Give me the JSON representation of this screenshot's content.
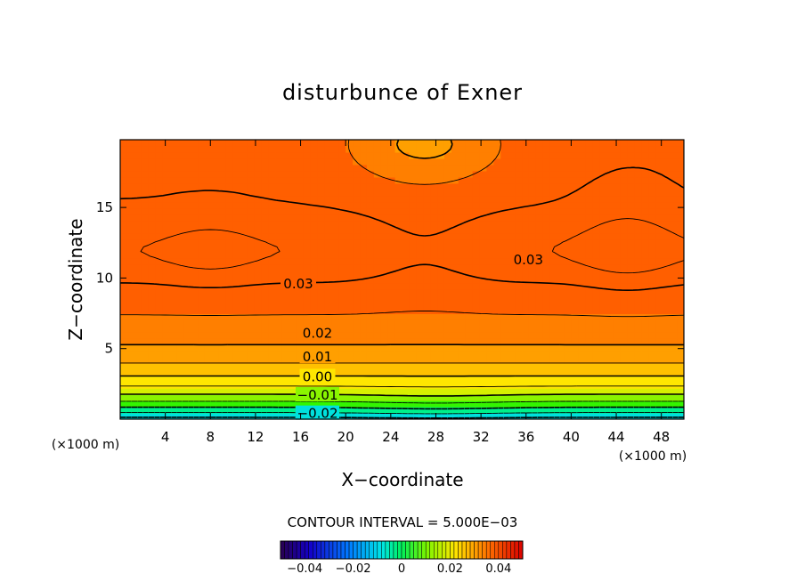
{
  "chart_data": {
    "type": "contour",
    "title": "disturbunce of Exner",
    "xlabel": "X−coordinate",
    "ylabel": "Z−coordinate",
    "x_unit": "(×1000 m)",
    "y_unit": "(×1000 m)",
    "xlim": [
      0,
      50
    ],
    "ylim": [
      0,
      19.8
    ],
    "x_ticks": [
      4,
      8,
      12,
      16,
      20,
      24,
      28,
      32,
      36,
      40,
      44,
      48
    ],
    "y_ticks": [
      5,
      10,
      15
    ],
    "contour_interval_text": "CONTOUR INTERVAL = 5.000E−03",
    "levels": [
      {
        "value": 0.035,
        "label": ""
      },
      {
        "value": 0.03,
        "label": "0.03"
      },
      {
        "value": 0.025,
        "label": ""
      },
      {
        "value": 0.02,
        "label": "0.02"
      },
      {
        "value": 0.015,
        "label": ""
      },
      {
        "value": 0.01,
        "label": "0.01"
      },
      {
        "value": 0.005,
        "label": ""
      },
      {
        "value": 0.0,
        "label": "0.00"
      },
      {
        "value": -0.005,
        "label": ""
      },
      {
        "value": -0.01,
        "label": "−0.01"
      },
      {
        "value": -0.015,
        "label": ""
      },
      {
        "value": -0.02,
        "label": "−0.02"
      }
    ],
    "contour_labels": [
      {
        "text": "0.03",
        "x": 15.8,
        "z": 9.6
      },
      {
        "text": "0.03",
        "x": 36.2,
        "z": 11.3
      },
      {
        "text": "0.02",
        "x": 17.5,
        "z": 6.1
      },
      {
        "text": "0.01",
        "x": 17.5,
        "z": 4.4
      },
      {
        "text": "0.00",
        "x": 17.5,
        "z": 3.0
      },
      {
        "text": "−0.01",
        "x": 17.5,
        "z": 1.7
      },
      {
        "text": "−0.02",
        "x": 17.5,
        "z": 0.4
      }
    ],
    "colorbar": {
      "range": [
        -0.05,
        0.05
      ],
      "ticks": [
        "−0.04",
        "−0.02",
        "0",
        "0.02",
        "0.04"
      ],
      "tick_values": [
        -0.04,
        -0.02,
        0,
        0.02,
        0.04
      ]
    },
    "fill_colors": [
      "#00b7ff",
      "#00e0dd",
      "#00f08a",
      "#33f500",
      "#8af500",
      "#d8f000",
      "#ffe600",
      "#ffc000",
      "#ff9f00",
      "#ff7f00",
      "#ff5f00"
    ]
  }
}
